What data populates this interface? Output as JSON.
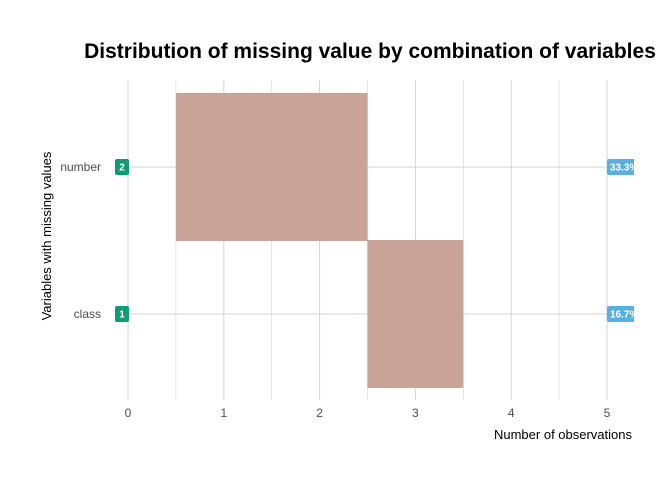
{
  "chart_data": {
    "type": "bar",
    "title": "Distribution of missing value by combination of variables",
    "xlabel": "Number of observations",
    "ylabel": "Variables with missing values",
    "xlim": [
      0,
      5
    ],
    "x_ticks": [
      "0",
      "1",
      "2",
      "3",
      "4",
      "5"
    ],
    "y_categories": [
      "number",
      "class"
    ],
    "grid": true,
    "series": [
      {
        "values": [
          {
            "variable": "number",
            "x_start": 0.5,
            "x_end": 2.5
          }
        ]
      },
      {
        "values": [
          {
            "variable": "class",
            "x_start": 2.5,
            "x_end": 3.5
          }
        ]
      }
    ],
    "left_badges": [
      {
        "variable": "number",
        "label": "2"
      },
      {
        "variable": "class",
        "label": "1"
      }
    ],
    "right_badges": [
      {
        "variable": "number",
        "label": "33.3%"
      },
      {
        "variable": "class",
        "label": "16.7%"
      }
    ],
    "colors": {
      "bar": "#c9a398",
      "left_badge": "#0f9b74",
      "right_badge": "#5aafe0",
      "grid": "#d4d4d4"
    }
  }
}
